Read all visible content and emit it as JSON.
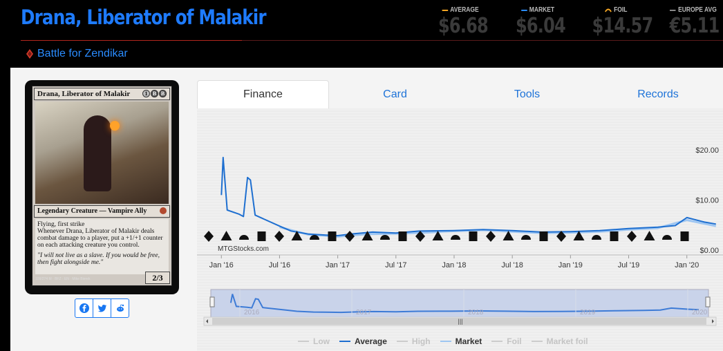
{
  "header": {
    "card_title": "Drana, Liberator of Malakir",
    "set_name": "Battle for Zendikar",
    "prices": [
      {
        "label": "AVERAGE",
        "value": "$6.68",
        "color": "#f5a623"
      },
      {
        "label": "MARKET",
        "value": "$6.04",
        "color": "#2a8cff"
      },
      {
        "label": "FOIL",
        "value": "$14.57",
        "color": "#f5a623"
      },
      {
        "label": "EUROPE AVG",
        "value": "€5.11",
        "color": "#888888"
      }
    ]
  },
  "card": {
    "name": "Drana, Liberator of Malakir",
    "mana": [
      "1",
      "B",
      "B"
    ],
    "type_line": "Legendary Creature — Vampire Ally",
    "rules_1": "Flying, first strike",
    "rules_2": "Whenever Drana, Liberator of Malakir deals combat damage to a player, put a +1/+1 counter on each attacking creature you control.",
    "flavor": "\"I will not live as a slave. If you would be free, then fight alongside me.\"",
    "pt": "2/3",
    "footer": "109/274 M · BFZ · EN · Mike Bierek"
  },
  "share": {
    "icons": [
      "facebook-icon",
      "twitter-icon",
      "reddit-icon"
    ]
  },
  "tabs": [
    "Finance",
    "Card",
    "Tools",
    "Records"
  ],
  "active_tab": "Finance",
  "watermark": "MTGStocks.com",
  "chart_data": {
    "type": "line",
    "x": [
      "Jan '16",
      "Jul '16",
      "Jan '17",
      "Jul '17",
      "Jan '18",
      "Jul '18",
      "Jan '19",
      "Jul '19",
      "Jan '20"
    ],
    "ylim": [
      0,
      20
    ],
    "yticks": [
      "$20.00",
      "$10.00",
      "$0.00"
    ],
    "series": [
      {
        "name": "Average",
        "color": "#1e6fd0",
        "points": [
          [
            0,
            11
          ],
          [
            0.03,
            18.5
          ],
          [
            0.1,
            8
          ],
          [
            0.3,
            7.2
          ],
          [
            0.38,
            6.7
          ],
          [
            0.45,
            14.5
          ],
          [
            0.5,
            14
          ],
          [
            0.58,
            7
          ],
          [
            1,
            4.8
          ],
          [
            1.2,
            3.8
          ],
          [
            1.5,
            3.2
          ],
          [
            1.8,
            3.0
          ],
          [
            2,
            2.9
          ],
          [
            2.3,
            3.3
          ],
          [
            2.6,
            3.6
          ],
          [
            3,
            3.4
          ],
          [
            3.4,
            3.8
          ],
          [
            4,
            3.9
          ],
          [
            4.5,
            4.1
          ],
          [
            5,
            3.9
          ],
          [
            5.5,
            3.6
          ],
          [
            6,
            3.7
          ],
          [
            6.5,
            3.9
          ],
          [
            7,
            4.3
          ],
          [
            7.5,
            4.6
          ],
          [
            7.8,
            4.9
          ],
          [
            8,
            6.5
          ],
          [
            8.3,
            5.6
          ],
          [
            8.5,
            5.2
          ]
        ]
      },
      {
        "name": "Market",
        "color": "#9ec6f2",
        "points": [
          [
            1,
            4.6
          ],
          [
            1.5,
            3.1
          ],
          [
            2,
            2.7
          ],
          [
            2.5,
            3.2
          ],
          [
            3,
            3.3
          ],
          [
            3.5,
            3.5
          ],
          [
            4,
            3.8
          ],
          [
            4.5,
            4.0
          ],
          [
            5,
            3.7
          ],
          [
            5.5,
            3.4
          ],
          [
            6,
            3.5
          ],
          [
            6.5,
            3.7
          ],
          [
            7,
            4.1
          ],
          [
            7.5,
            4.4
          ],
          [
            8,
            6.0
          ],
          [
            8.5,
            4.8
          ]
        ]
      }
    ],
    "legend": [
      "Low",
      "Average",
      "High",
      "Market",
      "Foil",
      "Market foil"
    ],
    "navigator_labels": [
      "2016",
      "2017",
      "2018",
      "2019",
      "2020"
    ],
    "set_symbols_count": 28
  }
}
